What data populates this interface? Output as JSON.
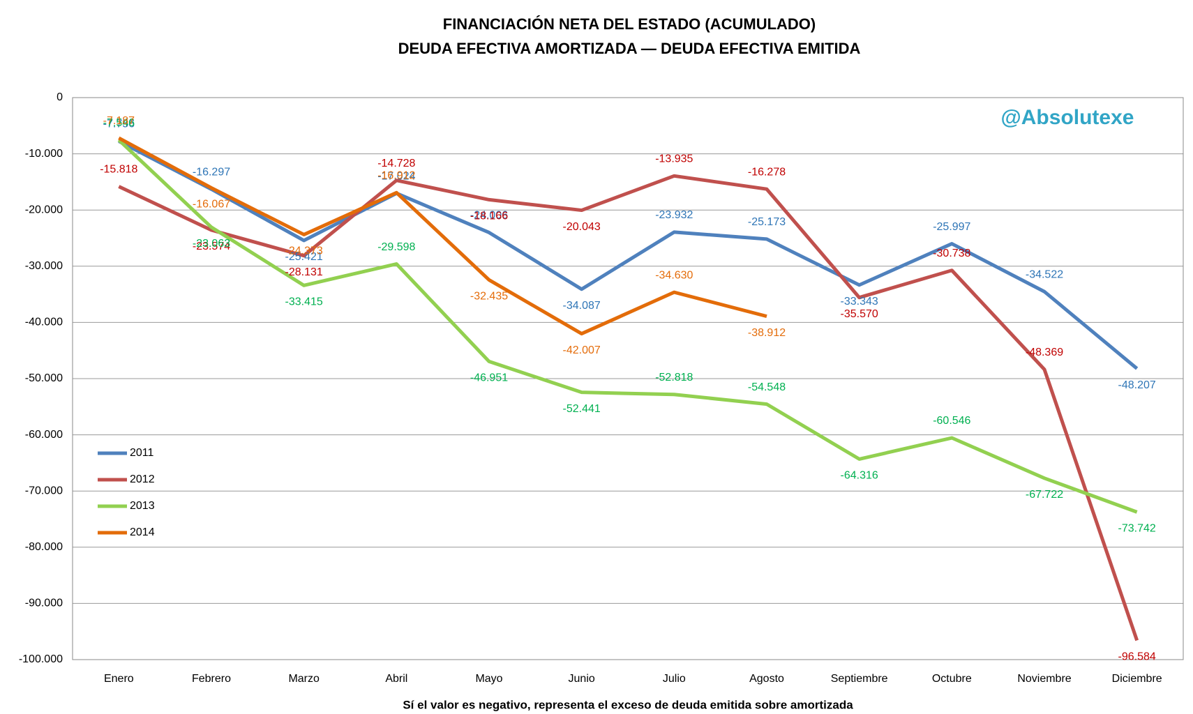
{
  "chart_data": {
    "type": "line",
    "title": "FINANCIACIÓN NETA DEL ESTADO (ACUMULADO)",
    "subtitle": "DEUDA EFECTIVA AMORTIZADA — DEUDA EFECTIVA EMITIDA",
    "x_label": "Sí el valor es negativo, representa el exceso de deuda emitida sobre amortizada",
    "watermark": "@Absolutexe",
    "categories": [
      "Enero",
      "Febrero",
      "Marzo",
      "Abril",
      "Mayo",
      "Junio",
      "Julio",
      "Agosto",
      "Septiembre",
      "Octubre",
      "Noviembre",
      "Diciembre"
    ],
    "series": [
      {
        "name": "2011",
        "color": "#4f81bd",
        "label_color": "#2e75b6",
        "values": [
          -7756,
          -16297,
          -25421,
          -17024,
          -24006,
          -34087,
          -23932,
          -25173,
          -33343,
          -25997,
          -34522,
          -48207
        ],
        "value_labels": [
          "-7.756",
          "-16.297",
          "-25.421",
          "-17.024",
          "-24.006",
          "-34.087",
          "-23.932",
          "-25.173",
          "-33.343",
          "-25.997",
          "-34.522",
          "-48.207"
        ]
      },
      {
        "name": "2012",
        "color": "#c0504d",
        "label_color": "#c00000",
        "values": [
          -15818,
          -23574,
          -28131,
          -14728,
          -18166,
          -20043,
          -13935,
          -16278,
          -35570,
          -30738,
          -48369,
          -96584
        ],
        "value_labels": [
          "-15.818",
          "-23.574",
          "-28.131",
          "-14.728",
          "-18.166",
          "-20.043",
          "-13.935",
          "-16.278",
          "-35.570",
          "-30.738",
          "-48.369",
          "-96.584"
        ]
      },
      {
        "name": "2013",
        "color": "#92d050",
        "label_color": "#00b050",
        "values": [
          -7546,
          -23063,
          -33415,
          -29598,
          -46951,
          -52441,
          -52818,
          -54548,
          -64316,
          -60546,
          -67722,
          -73742
        ],
        "value_labels": [
          "-7.546",
          "-23.063",
          "-33.415",
          "-29.598",
          "-46.951",
          "-52.441",
          "-52.818",
          "-54.548",
          "-64.316",
          "-60.546",
          "-67.722",
          "-73.742"
        ]
      },
      {
        "name": "2014",
        "color": "#e36c09",
        "label_color": "#e46c0a",
        "values": [
          -7187,
          -16067,
          -24373,
          -16912,
          -32435,
          -42007,
          -34630,
          -38912,
          null,
          null,
          null,
          null
        ],
        "value_labels": [
          "-7.187",
          "-16.067",
          "-24.373",
          "-16.912",
          "-32.435",
          "-42.007",
          "-34.630",
          "-38.912",
          null,
          null,
          null,
          null
        ]
      }
    ],
    "ylim": [
      -100000,
      0
    ],
    "yticks": [
      0,
      {
        "value": -10000,
        "label": "-10.000"
      },
      {
        "value": -20000,
        "label": "-20.000"
      },
      {
        "value": -30000,
        "label": "-30.000"
      },
      {
        "value": -40000,
        "label": "-40.000"
      },
      {
        "value": -50000,
        "label": "-50.000"
      },
      {
        "value": -60000,
        "label": "-60.000"
      },
      {
        "value": -70000,
        "label": "-70.000"
      },
      {
        "value": -80000,
        "label": "-80.000"
      },
      {
        "value": -90000,
        "label": "-90.000"
      },
      {
        "value": -100000,
        "label": "-100.000"
      }
    ],
    "grid": true,
    "legend": "left"
  }
}
